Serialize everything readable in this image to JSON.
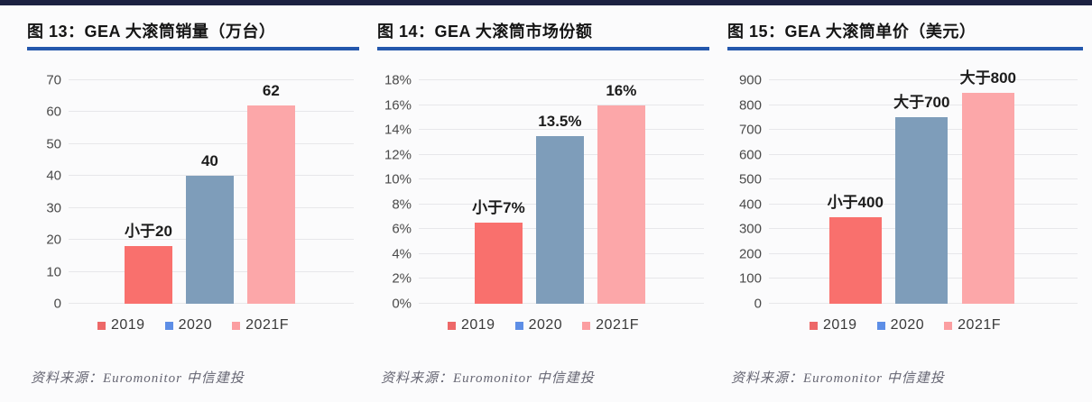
{
  "page": {
    "top_bar_color": "#1c2141",
    "title_rule_color": "#2457ac"
  },
  "chart_data": [
    {
      "type": "bar",
      "title": "图 13：GEA 大滚筒销量（万台）",
      "categories": [
        "2019",
        "2020",
        "2021F"
      ],
      "values": [
        18,
        40,
        62
      ],
      "bar_labels": [
        "小于20",
        "40",
        "62"
      ],
      "bar_colors": [
        "#f9706d",
        "#7e9dba",
        "#fca7a9"
      ],
      "ylim": [
        0,
        70
      ],
      "yticks": [
        0,
        10,
        20,
        30,
        40,
        50,
        60,
        70
      ],
      "ytick_labels": [
        "0",
        "10",
        "20",
        "30",
        "40",
        "50",
        "60",
        "70"
      ],
      "grid": true,
      "legend_position": "bottom",
      "legend": [
        {
          "label": "2019",
          "color": "#ed6868"
        },
        {
          "label": "2020",
          "color": "#5d8ee6"
        },
        {
          "label": "2021F",
          "color": "#fb9ea1"
        }
      ],
      "source": "资料来源：Euromonitor 中信建投"
    },
    {
      "type": "bar",
      "title": "图 14：GEA 大滚筒市场份额",
      "categories": [
        "2019",
        "2020",
        "2021F"
      ],
      "values": [
        6.5,
        13.5,
        16
      ],
      "bar_labels": [
        "小于7%",
        "13.5%",
        "16%"
      ],
      "bar_colors": [
        "#f9706d",
        "#7e9dba",
        "#fca7a9"
      ],
      "ylim": [
        0,
        18
      ],
      "yticks": [
        0,
        2,
        4,
        6,
        8,
        10,
        12,
        14,
        16,
        18
      ],
      "ytick_labels": [
        "0%",
        "2%",
        "4%",
        "6%",
        "8%",
        "10%",
        "12%",
        "14%",
        "16%",
        "18%"
      ],
      "grid": true,
      "legend_position": "bottom",
      "legend": [
        {
          "label": "2019",
          "color": "#ed6868"
        },
        {
          "label": "2020",
          "color": "#5d8ee6"
        },
        {
          "label": "2021F",
          "color": "#fb9ea1"
        }
      ],
      "source": "资料来源：Euromonitor 中信建投"
    },
    {
      "type": "bar",
      "title": "图 15：GEA 大滚筒单价（美元）",
      "categories": [
        "2019",
        "2020",
        "2021F"
      ],
      "values": [
        350,
        750,
        850
      ],
      "bar_labels": [
        "小于400",
        "大于700",
        "大于800"
      ],
      "bar_colors": [
        "#f9706d",
        "#7e9dba",
        "#fca7a9"
      ],
      "ylim": [
        0,
        900
      ],
      "yticks": [
        0,
        100,
        200,
        300,
        400,
        500,
        600,
        700,
        800,
        900
      ],
      "ytick_labels": [
        "0",
        "100",
        "200",
        "300",
        "400",
        "500",
        "600",
        "700",
        "800",
        "900"
      ],
      "grid": true,
      "legend_position": "bottom",
      "legend": [
        {
          "label": "2019",
          "color": "#ed6868"
        },
        {
          "label": "2020",
          "color": "#5d8ee6"
        },
        {
          "label": "2021F",
          "color": "#fb9ea1"
        }
      ],
      "source": "资料来源：Euromonitor 中信建投"
    }
  ]
}
